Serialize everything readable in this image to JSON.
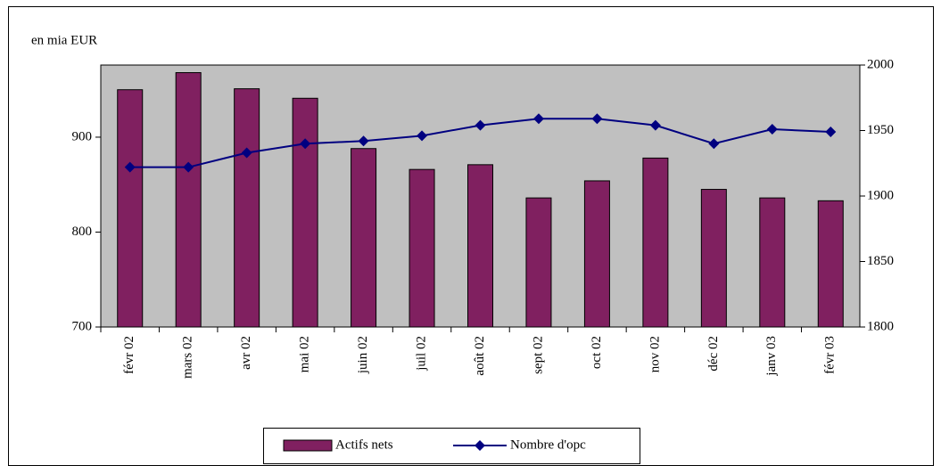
{
  "chart_data": {
    "type": "bar_line",
    "y_label": "en mia EUR",
    "categories": [
      "févr 02",
      "mars 02",
      "avr 02",
      "mai 02",
      "juin 02",
      "juil 02",
      "août 02",
      "sept 02",
      "oct 02",
      "nov 02",
      "déc 02",
      "janv 03",
      "févr 03"
    ],
    "series": [
      {
        "name": "Actifs nets",
        "color": "#802060",
        "type": "bar",
        "axis": "y",
        "values": [
          950,
          968,
          951,
          941,
          888,
          866,
          871,
          836,
          854,
          878,
          845,
          836,
          833
        ]
      },
      {
        "name": "Nombre d'opc",
        "color": "#000080",
        "type": "line",
        "axis": "y2",
        "values": [
          1922,
          1922,
          1933,
          1940,
          1942,
          1946,
          1954,
          1959,
          1959,
          1954,
          1940,
          1951,
          1949
        ]
      }
    ],
    "ylim": [
      700,
      976
    ],
    "yticks": [
      700,
      800,
      900
    ],
    "y2lim": [
      1800,
      2000
    ],
    "y2ticks": [
      1800,
      1850,
      1900,
      1950,
      2000
    ],
    "plot_background": "#c0c0c0"
  }
}
